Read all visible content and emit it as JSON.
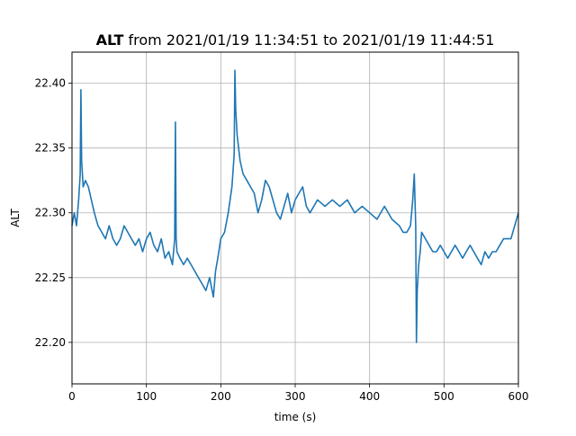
{
  "chart_data": {
    "type": "line",
    "title_bold": "ALT",
    "title_rest": " from 2021/01/19 11:34:51 to 2021/01/19 11:44:51",
    "xlabel": "time (s)",
    "ylabel": "ALT",
    "xlim": [
      0,
      600
    ],
    "ylim": [
      22.168,
      22.424
    ],
    "xticks": [
      0,
      100,
      200,
      300,
      400,
      500,
      600
    ],
    "xtick_labels": [
      "0",
      "100",
      "200",
      "300",
      "400",
      "500",
      "600"
    ],
    "yticks": [
      22.2,
      22.25,
      22.3,
      22.35,
      22.4
    ],
    "ytick_labels": [
      "22.20",
      "22.25",
      "22.30",
      "22.35",
      "22.40"
    ],
    "grid": true,
    "color": "#1f77b4",
    "series": [
      {
        "x": [
          0,
          3,
          6,
          9,
          11,
          12,
          13,
          15,
          18,
          22,
          26,
          30,
          35,
          40,
          45,
          50,
          55,
          60,
          65,
          70,
          75,
          80,
          85,
          90,
          95,
          100,
          105,
          110,
          115,
          120,
          125,
          130,
          135,
          138,
          139,
          140,
          141,
          145,
          150,
          155,
          160,
          165,
          170,
          175,
          180,
          185,
          190,
          193,
          196,
          200,
          205,
          210,
          215,
          218,
          219,
          220,
          222,
          226,
          230,
          235,
          240,
          245,
          250,
          255,
          260,
          265,
          270,
          275,
          280,
          285,
          290,
          295,
          300,
          305,
          310,
          315,
          320,
          330,
          340,
          350,
          360,
          370,
          380,
          390,
          400,
          410,
          420,
          430,
          440,
          445,
          450,
          455,
          458,
          460,
          462,
          463,
          464,
          466,
          468,
          470,
          475,
          480,
          485,
          490,
          495,
          500,
          505,
          510,
          515,
          520,
          525,
          530,
          535,
          540,
          545,
          550,
          555,
          560,
          565,
          570,
          575,
          580,
          585,
          590,
          595,
          600
        ],
        "y": [
          22.29,
          22.3,
          22.29,
          22.31,
          22.33,
          22.395,
          22.34,
          22.32,
          22.325,
          22.32,
          22.31,
          22.3,
          22.29,
          22.285,
          22.28,
          22.29,
          22.28,
          22.275,
          22.28,
          22.29,
          22.285,
          22.28,
          22.275,
          22.28,
          22.27,
          22.28,
          22.285,
          22.275,
          22.27,
          22.28,
          22.265,
          22.27,
          22.26,
          22.28,
          22.37,
          22.28,
          22.27,
          22.265,
          22.26,
          22.265,
          22.26,
          22.255,
          22.25,
          22.245,
          22.24,
          22.25,
          22.235,
          22.255,
          22.265,
          22.28,
          22.285,
          22.3,
          22.32,
          22.345,
          22.41,
          22.38,
          22.36,
          22.34,
          22.33,
          22.325,
          22.32,
          22.315,
          22.3,
          22.31,
          22.325,
          22.32,
          22.31,
          22.3,
          22.295,
          22.305,
          22.315,
          22.3,
          22.31,
          22.315,
          22.32,
          22.305,
          22.3,
          22.31,
          22.305,
          22.31,
          22.305,
          22.31,
          22.3,
          22.305,
          22.3,
          22.295,
          22.305,
          22.295,
          22.29,
          22.285,
          22.285,
          22.29,
          22.31,
          22.33,
          22.29,
          22.2,
          22.24,
          22.26,
          22.27,
          22.285,
          22.28,
          22.275,
          22.27,
          22.27,
          22.275,
          22.27,
          22.265,
          22.27,
          22.275,
          22.27,
          22.265,
          22.27,
          22.275,
          22.27,
          22.265,
          22.26,
          22.27,
          22.265,
          22.27,
          22.27,
          22.275,
          22.28,
          22.28,
          22.28,
          22.29,
          22.3
        ]
      }
    ]
  }
}
